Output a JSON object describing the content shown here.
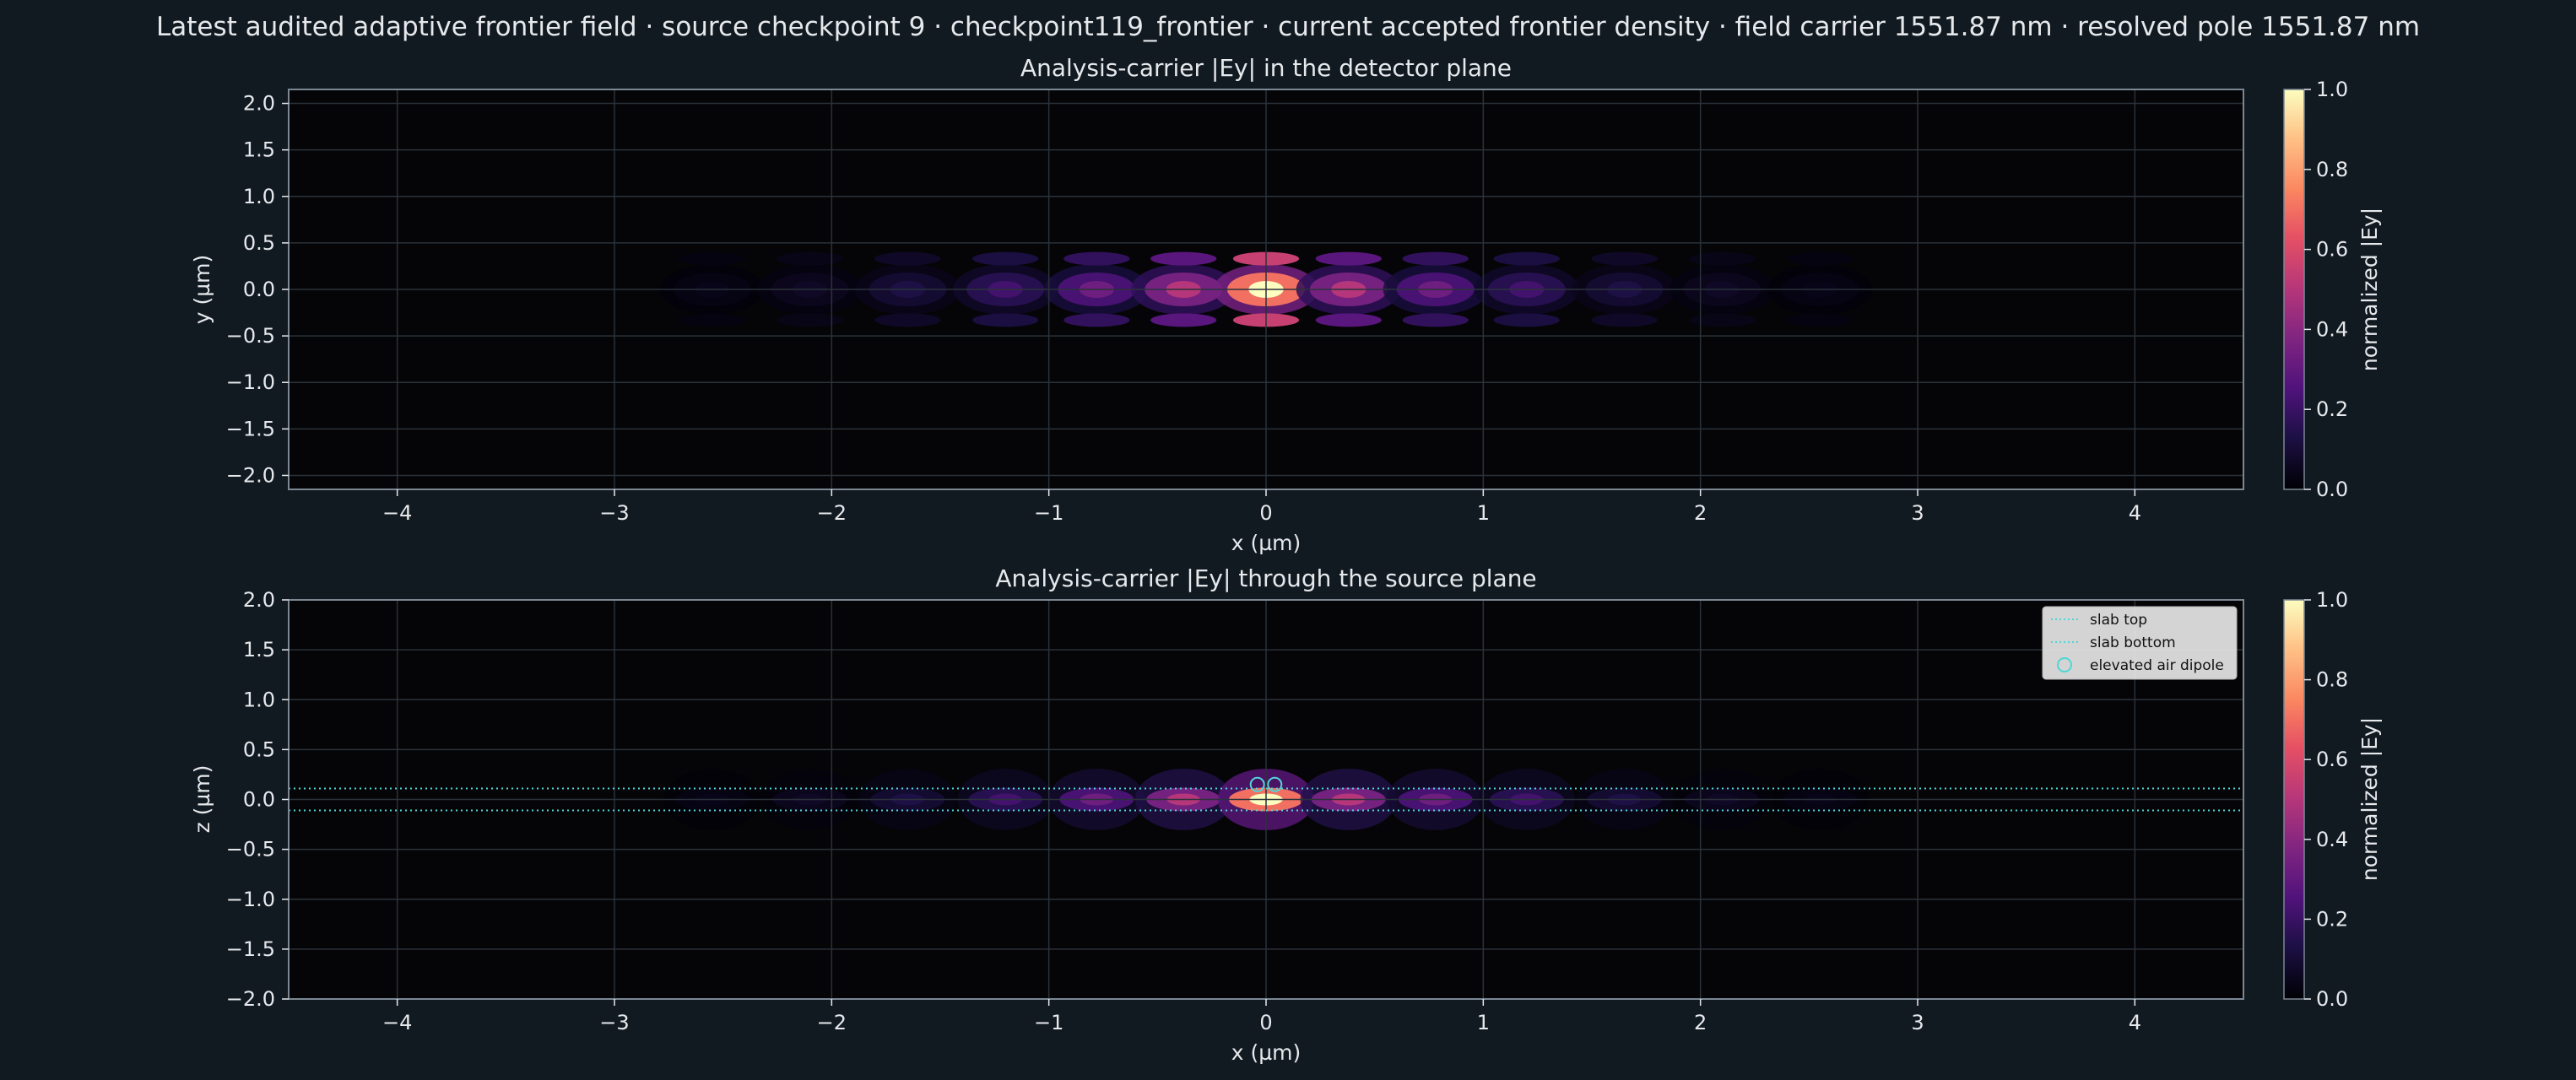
{
  "figure": {
    "suptitle": "Latest audited adaptive frontier field · source checkpoint 9 · checkpoint119_frontier · current accepted frontier density · field carrier 1551.87 nm · resolved pole 1551.87 nm",
    "background": "#121a21",
    "text_color": "#e6e9ec",
    "colormap": "magma"
  },
  "chart_data": [
    {
      "type": "heatmap",
      "title": "Analysis-carrier |Ey| in the detector plane",
      "xlabel": "x (µm)",
      "ylabel": "y (µm)",
      "xlim": [
        -4.5,
        4.5
      ],
      "ylim": [
        -2.15,
        2.15
      ],
      "xticks": [
        -4,
        -3,
        -2,
        -1,
        0,
        1,
        2,
        3,
        4
      ],
      "yticks": [
        -2.0,
        -1.5,
        -1.0,
        -0.5,
        0.0,
        0.5,
        1.0,
        1.5,
        2.0
      ],
      "xtick_labels": [
        "−4",
        "−3",
        "−2",
        "−1",
        "0",
        "1",
        "2",
        "3",
        "4"
      ],
      "ytick_labels": [
        "−2.0",
        "−1.5",
        "−1.0",
        "−0.5",
        "0.0",
        "0.5",
        "1.0",
        "1.5",
        "2.0"
      ],
      "grid": true,
      "colorbar": {
        "label": "normalized |Ey|",
        "range": [
          0.0,
          1.0
        ],
        "ticks": [
          0.0,
          0.2,
          0.4,
          0.6,
          0.8,
          1.0
        ],
        "tick_labels": [
          "0.0",
          "0.2",
          "0.4",
          "0.6",
          "0.8",
          "1.0"
        ]
      },
      "field": {
        "lobe_centers_x": [
          -2.55,
          -2.1,
          -1.65,
          -1.2,
          -0.78,
          -0.38,
          0.0,
          0.38,
          0.78,
          1.2,
          1.65,
          2.1,
          2.55
        ],
        "lobe_peaks": [
          0.04,
          0.07,
          0.13,
          0.22,
          0.33,
          0.5,
          1.0,
          0.5,
          0.33,
          0.22,
          0.13,
          0.07,
          0.04
        ],
        "main_band_center_y": 0.0,
        "side_bands_y": [
          0.33,
          -0.33
        ],
        "side_band_relative_strength": 0.55
      }
    },
    {
      "type": "heatmap",
      "title": "Analysis-carrier |Ey| through the source plane",
      "xlabel": "x (µm)",
      "ylabel": "z (µm)",
      "xlim": [
        -4.5,
        4.5
      ],
      "ylim": [
        -2.0,
        2.0
      ],
      "xticks": [
        -4,
        -3,
        -2,
        -1,
        0,
        1,
        2,
        3,
        4
      ],
      "yticks": [
        -2.0,
        -1.5,
        -1.0,
        -0.5,
        0.0,
        0.5,
        1.0,
        1.5,
        2.0
      ],
      "xtick_labels": [
        "−4",
        "−3",
        "−2",
        "−1",
        "0",
        "1",
        "2",
        "3",
        "4"
      ],
      "ytick_labels": [
        "−2.0",
        "−1.5",
        "−1.0",
        "−0.5",
        "0.0",
        "0.5",
        "1.0",
        "1.5",
        "2.0"
      ],
      "grid": true,
      "colorbar": {
        "label": "normalized |Ey|",
        "range": [
          0.0,
          1.0
        ],
        "ticks": [
          0.0,
          0.2,
          0.4,
          0.6,
          0.8,
          1.0
        ],
        "tick_labels": [
          "0.0",
          "0.2",
          "0.4",
          "0.6",
          "0.8",
          "1.0"
        ]
      },
      "slab_top_z": 0.11,
      "slab_bottom_z": -0.11,
      "dipoles": [
        {
          "x": -0.04,
          "z": 0.15
        },
        {
          "x": 0.04,
          "z": 0.15
        }
      ],
      "legend": {
        "placement": "top-right",
        "entries": [
          {
            "label": "slab top",
            "kind": "dotted-line"
          },
          {
            "label": "slab bottom",
            "kind": "dotted-line"
          },
          {
            "label": "elevated air dipole",
            "kind": "circle-marker"
          }
        ]
      },
      "overlay_color": "#4fd6d6",
      "field": {
        "lobe_centers_x": [
          -2.55,
          -2.1,
          -1.65,
          -1.2,
          -0.78,
          -0.38,
          0.0,
          0.38,
          0.78,
          1.2,
          1.65,
          2.1,
          2.55
        ],
        "lobe_peaks": [
          0.04,
          0.07,
          0.13,
          0.22,
          0.33,
          0.5,
          1.0,
          0.5,
          0.33,
          0.22,
          0.13,
          0.07,
          0.04
        ],
        "core_center_z": 0.0
      }
    }
  ]
}
